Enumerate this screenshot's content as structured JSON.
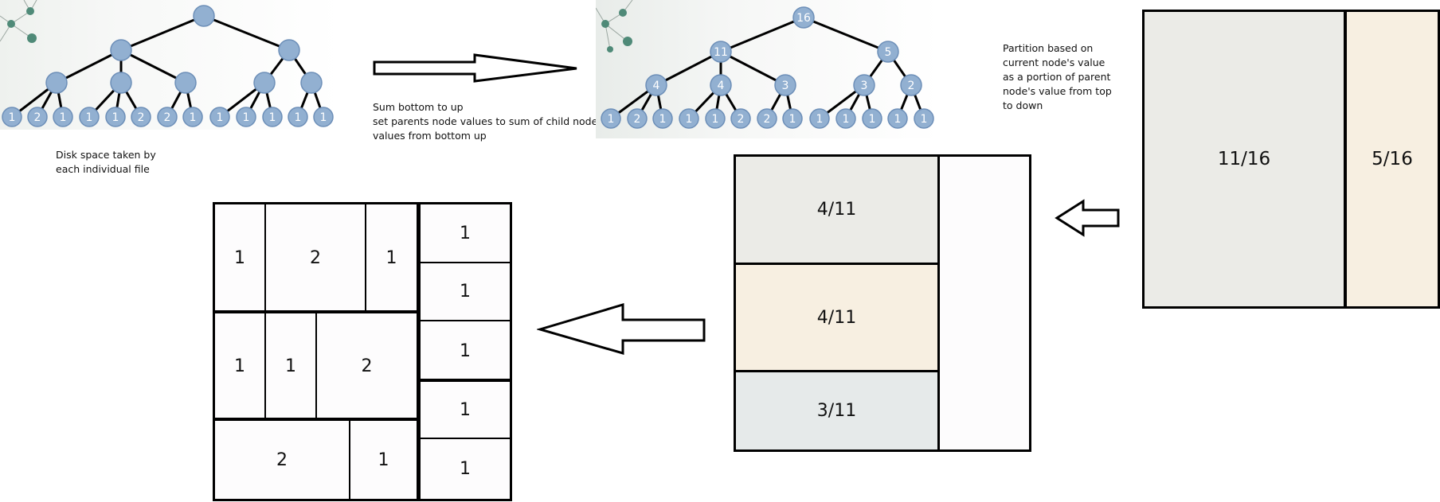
{
  "trees": {
    "leaf_values": [
      "1",
      "2",
      "1",
      "1",
      "1",
      "2",
      "2",
      "1",
      "1",
      "1",
      "1",
      "1",
      "1"
    ],
    "summed_values": {
      "root": "16",
      "level1": [
        "11",
        "5"
      ],
      "level2": [
        "4",
        "4",
        "3",
        "3",
        "2"
      ],
      "leaves": [
        "1",
        "2",
        "1",
        "1",
        "1",
        "2",
        "2",
        "1",
        "1",
        "1",
        "1",
        "1",
        "1"
      ]
    },
    "node_color": "#92b0d1",
    "node_border": "#6d8fb8"
  },
  "captions": {
    "disk_space": "Disk space taken by\neach individual file",
    "sum_bottom_up": "Sum bottom to up\nset parents node values to sum of child node\nvalues from bottom up",
    "partition": "Partition based on\ncurrent node's value\nas a portion of parent\nnode's value from top\nto down"
  },
  "maps": {
    "level1": {
      "left": "11/16",
      "right": "5/16"
    },
    "level2": {
      "top": "4/11",
      "middle": "4/11",
      "bottom": "3/11"
    },
    "final": {
      "row1": [
        "1",
        "2",
        "1"
      ],
      "row2": [
        "1",
        "1",
        "2"
      ],
      "row3": [
        "2",
        "1"
      ],
      "column": [
        "1",
        "1",
        "1",
        "1",
        "1"
      ]
    }
  },
  "colors": {
    "gray": "#ebebe7",
    "cream": "#f7efe1",
    "bluegray": "#e6eaea",
    "white_cell": "#fdfcfd",
    "network_dot": "#4f8a78"
  }
}
